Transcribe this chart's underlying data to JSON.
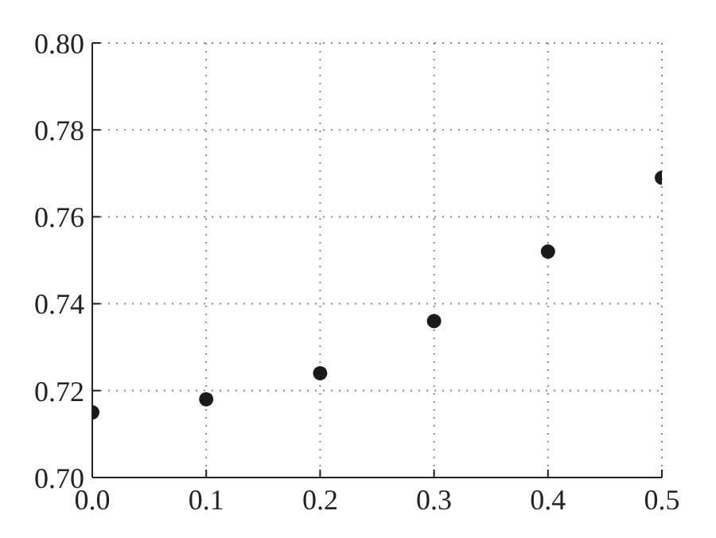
{
  "chart_data": {
    "type": "scatter",
    "x": [
      0,
      0.1,
      0.2,
      0.3,
      0.4,
      0.5
    ],
    "series": [
      {
        "color": "#1a1a1a",
        "values": [
          0.715,
          0.718,
          0.724,
          0.736,
          0.752,
          0.769
        ]
      }
    ],
    "xlim": [
      0,
      0.5
    ],
    "xticks": [
      {
        "value": 0,
        "label": "0.0"
      },
      0.1,
      0.2,
      0.3,
      0.4,
      0.5
    ],
    "ylim": [
      0.7,
      0.8
    ],
    "yticks": [
      {
        "value": 0.7,
        "label": "0.70"
      },
      {
        "value": 0.72,
        "label": "0.72"
      },
      {
        "value": 0.74,
        "label": "0.74"
      },
      {
        "value": 0.76,
        "label": "0.76"
      },
      {
        "value": 0.78,
        "label": "0.78"
      },
      {
        "value": 0.8,
        "label": "0.80"
      }
    ],
    "grid": true,
    "marker": "circle"
  }
}
